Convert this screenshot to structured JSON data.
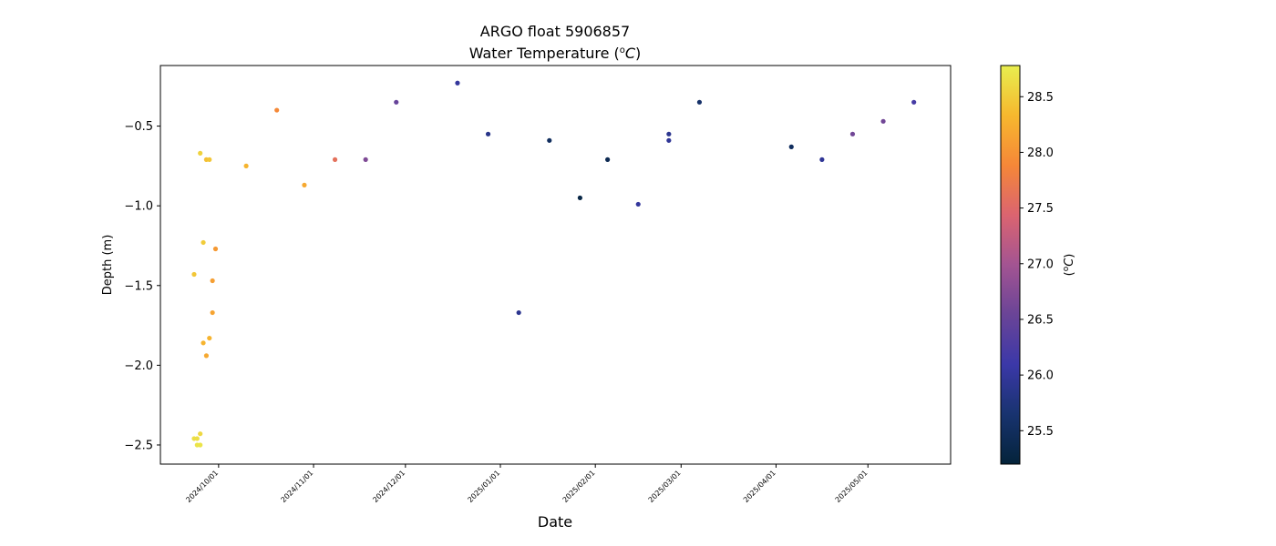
{
  "chart_data": {
    "type": "scatter",
    "title_line1": "ARGO float 5906857",
    "title_line2": "Water Temperature (",
    "title_unit_sup": "o",
    "title_unit_c": "C",
    "title_line2_end": ")",
    "xlabel": "Date",
    "ylabel": "Depth (m)",
    "colorbar_label_pre": "(",
    "colorbar_label_sup": "o",
    "colorbar_label_c": "C",
    "colorbar_label_post": ")",
    "x_ticks": [
      "2024/10/01",
      "2024/11/01",
      "2024/12/01",
      "2025/01/01",
      "2025/02/01",
      "2025/03/01",
      "2025/04/01",
      "2025/05/01"
    ],
    "y_ticks": [
      "−0.5",
      "−1.0",
      "−1.5",
      "−2.0",
      "−2.5"
    ],
    "y_tick_values": [
      -0.5,
      -1.0,
      -1.5,
      -2.0,
      -2.5
    ],
    "colorbar_ticks": [
      "25.5",
      "26.0",
      "26.5",
      "27.0",
      "27.5",
      "28.0",
      "28.5"
    ],
    "colorbar_tick_values": [
      25.5,
      26.0,
      26.5,
      27.0,
      27.5,
      28.0,
      28.5
    ],
    "xlim": [
      "2024-09-12",
      "2025-05-28"
    ],
    "ylim": [
      -2.62,
      -0.12
    ],
    "clim": [
      25.2,
      28.78
    ],
    "colormap": "thermal",
    "colormap_stops": [
      "#04233a",
      "#18336f",
      "#3b38a8",
      "#6a4497",
      "#a35492",
      "#db6470",
      "#f58738",
      "#f6b82e",
      "#e8ee4f"
    ],
    "points": [
      {
        "date": "2024-09-23",
        "depth": -1.43,
        "temp": 28.45
      },
      {
        "date": "2024-09-23",
        "depth": -2.46,
        "temp": 28.65
      },
      {
        "date": "2024-09-24",
        "depth": -2.46,
        "temp": 28.65
      },
      {
        "date": "2024-09-24",
        "depth": -2.5,
        "temp": 28.7
      },
      {
        "date": "2024-09-25",
        "depth": -2.5,
        "temp": 28.7
      },
      {
        "date": "2024-09-25",
        "depth": -2.43,
        "temp": 28.6
      },
      {
        "date": "2024-09-25",
        "depth": -0.67,
        "temp": 28.55
      },
      {
        "date": "2024-09-26",
        "depth": -1.23,
        "temp": 28.5
      },
      {
        "date": "2024-09-26",
        "depth": -1.86,
        "temp": 28.3
      },
      {
        "date": "2024-09-27",
        "depth": -1.94,
        "temp": 28.2
      },
      {
        "date": "2024-09-27",
        "depth": -0.71,
        "temp": 28.4
      },
      {
        "date": "2024-09-28",
        "depth": -0.71,
        "temp": 28.45
      },
      {
        "date": "2024-09-28",
        "depth": -1.83,
        "temp": 28.3
      },
      {
        "date": "2024-09-29",
        "depth": -1.47,
        "temp": 28.1
      },
      {
        "date": "2024-09-29",
        "depth": -1.67,
        "temp": 28.15
      },
      {
        "date": "2024-09-30",
        "depth": -1.27,
        "temp": 28.05
      },
      {
        "date": "2024-10-10",
        "depth": -0.75,
        "temp": 28.3
      },
      {
        "date": "2024-10-20",
        "depth": -0.4,
        "temp": 27.9
      },
      {
        "date": "2024-10-29",
        "depth": -0.87,
        "temp": 28.2
      },
      {
        "date": "2024-11-08",
        "depth": -0.71,
        "temp": 27.6
      },
      {
        "date": "2024-11-18",
        "depth": -0.71,
        "temp": 26.7
      },
      {
        "date": "2024-11-28",
        "depth": -0.35,
        "temp": 26.5
      },
      {
        "date": "2024-12-18",
        "depth": -0.23,
        "temp": 26.0
      },
      {
        "date": "2024-12-28",
        "depth": -0.55,
        "temp": 25.85
      },
      {
        "date": "2025-01-07",
        "depth": -1.67,
        "temp": 25.9
      },
      {
        "date": "2025-01-17",
        "depth": -0.59,
        "temp": 25.5
      },
      {
        "date": "2025-01-27",
        "depth": -0.95,
        "temp": 25.3
      },
      {
        "date": "2025-02-05",
        "depth": -0.71,
        "temp": 25.4
      },
      {
        "date": "2025-02-15",
        "depth": -0.99,
        "temp": 26.0
      },
      {
        "date": "2025-02-25",
        "depth": -0.55,
        "temp": 25.9
      },
      {
        "date": "2025-02-25",
        "depth": -0.59,
        "temp": 25.95
      },
      {
        "date": "2025-03-07",
        "depth": -0.35,
        "temp": 25.6
      },
      {
        "date": "2025-04-06",
        "depth": -0.63,
        "temp": 25.5
      },
      {
        "date": "2025-04-16",
        "depth": -0.71,
        "temp": 25.95
      },
      {
        "date": "2025-04-26",
        "depth": -0.55,
        "temp": 26.6
      },
      {
        "date": "2025-05-06",
        "depth": -0.47,
        "temp": 26.6
      },
      {
        "date": "2025-05-16",
        "depth": -0.35,
        "temp": 26.2
      }
    ]
  }
}
